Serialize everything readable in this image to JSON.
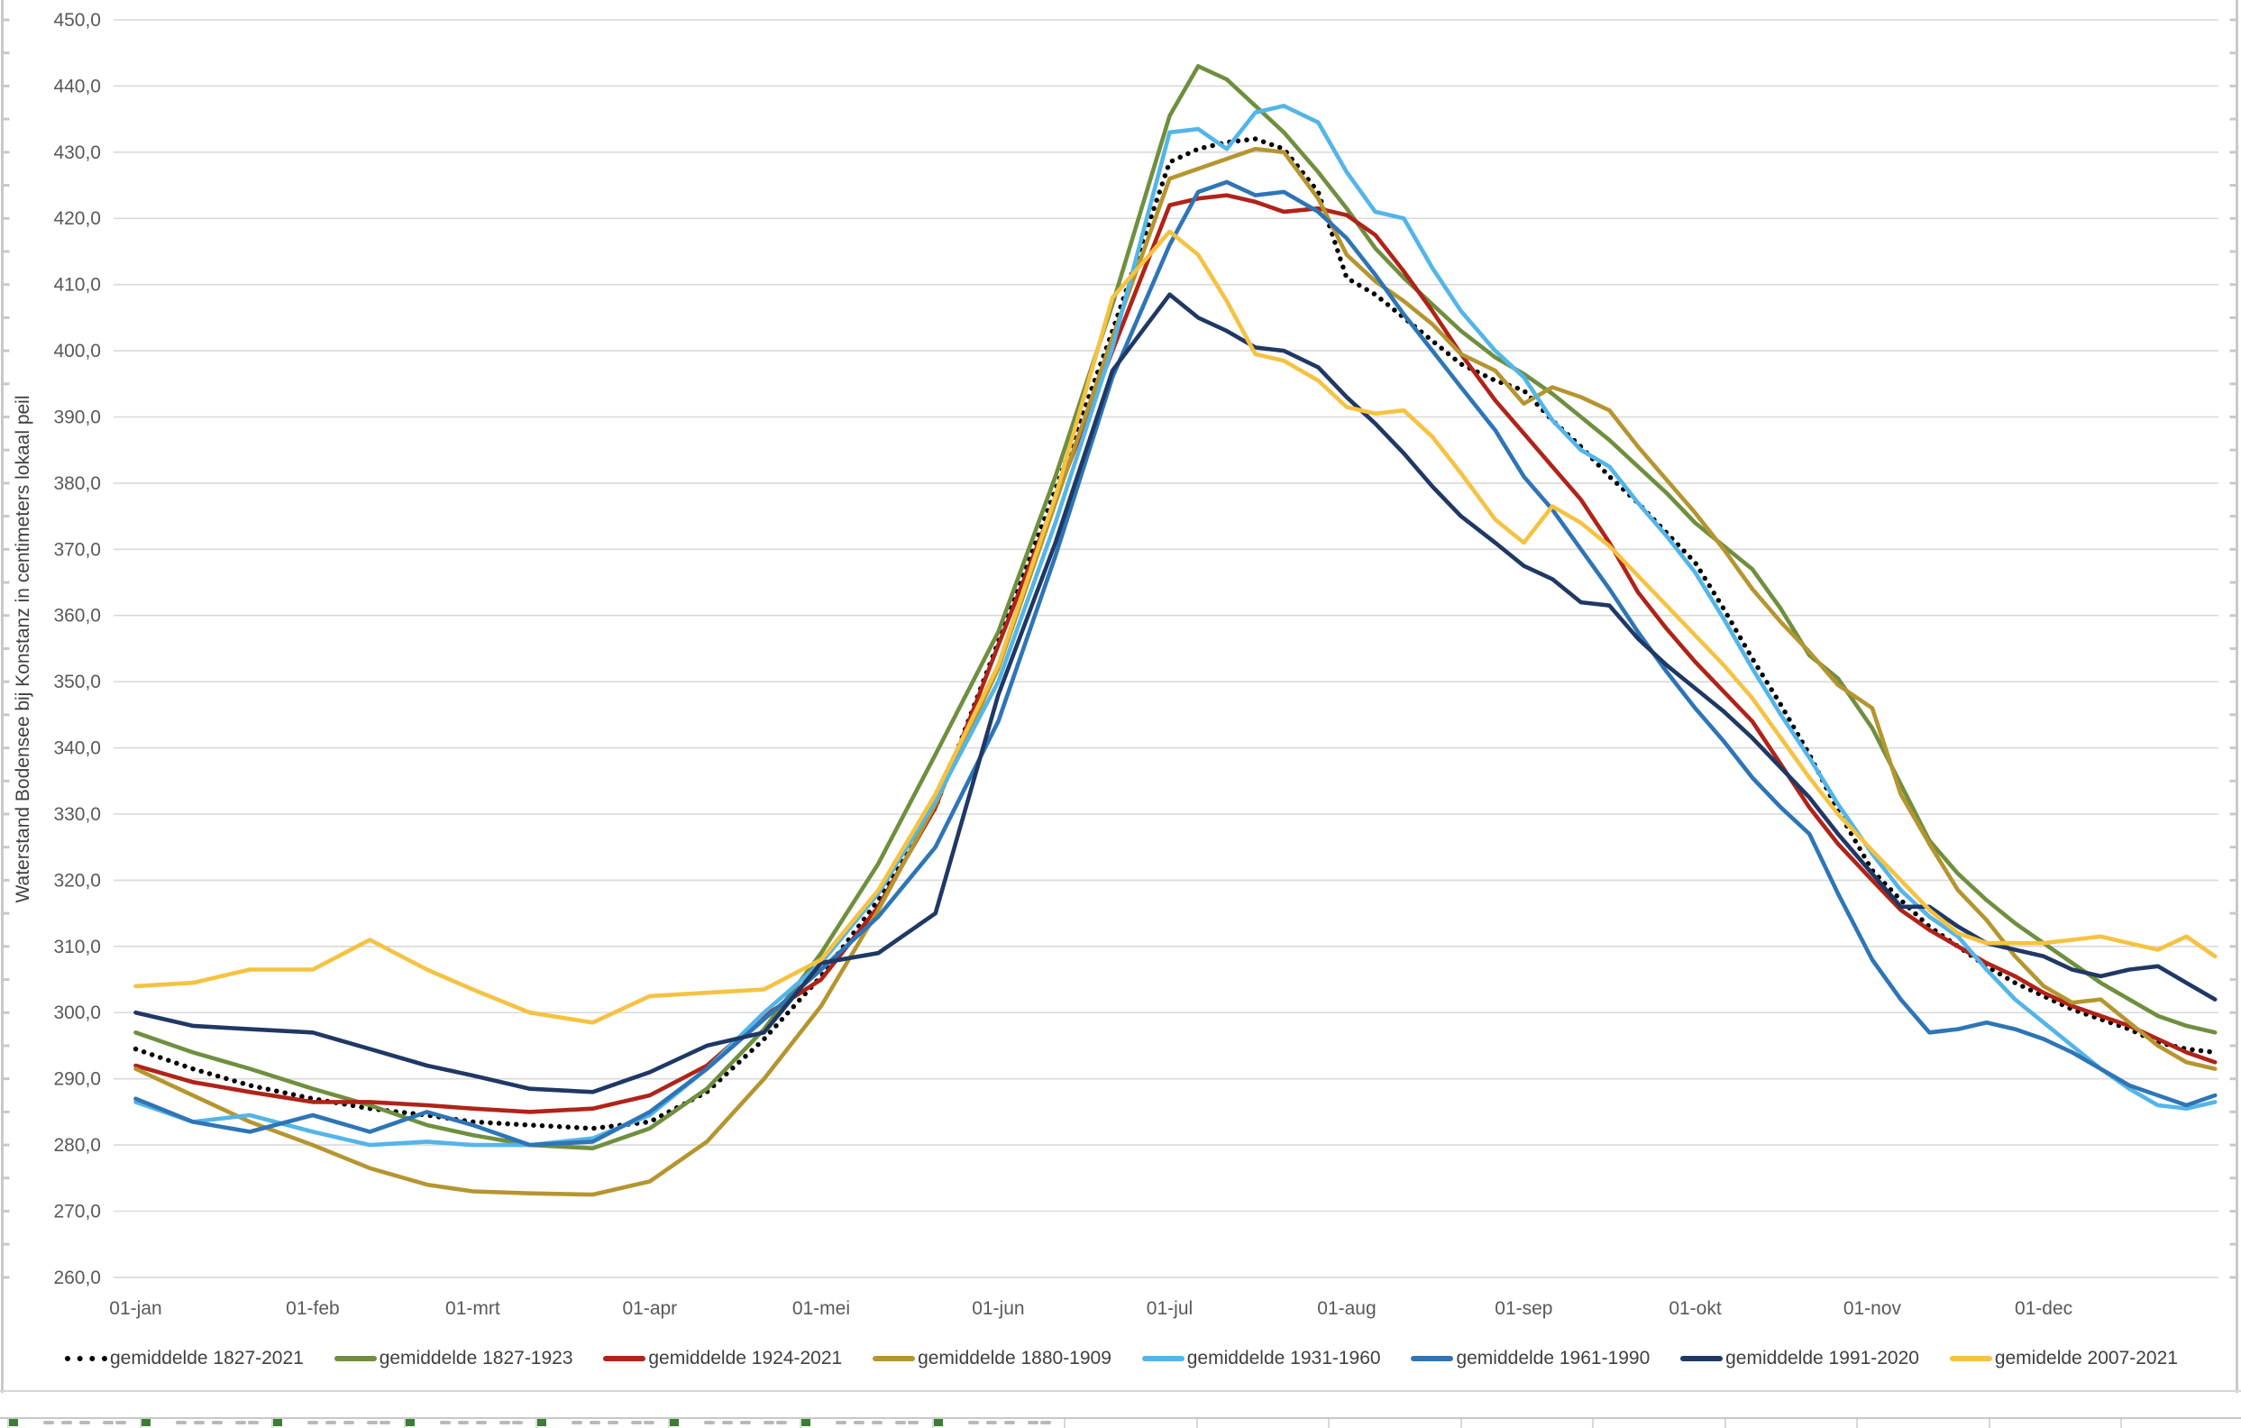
{
  "chart": {
    "y_axis": {
      "title": "Waterstand Bodensee bij Konstanz in centimeters lokaal peil",
      "min": 260,
      "max": 450,
      "step": 10,
      "tick_labels": [
        "450,0",
        "440,0",
        "430,0",
        "420,0",
        "410,0",
        "400,0",
        "390,0",
        "380,0",
        "370,0",
        "360,0",
        "350,0",
        "340,0",
        "330,0",
        "320,0",
        "310,0",
        "300,0",
        "290,0",
        "280,0",
        "270,0",
        "260,0"
      ]
    },
    "x_axis": {
      "labels": [
        "01-jan",
        "01-feb",
        "01-mrt",
        "01-apr",
        "01-mei",
        "01-jun",
        "01-jul",
        "01-aug",
        "01-sep",
        "01-okt",
        "01-nov",
        "01-dec"
      ],
      "month_start_days": [
        0,
        31,
        59,
        90,
        120,
        151,
        181,
        212,
        243,
        273,
        304,
        334
      ]
    },
    "grid_color": "#d9d9d9",
    "axis_text_color": "#595959",
    "border_color": "#c9c9c9"
  },
  "chart_data": {
    "type": "line",
    "title": "",
    "xlabel": "",
    "ylabel": "Waterstand Bodensee bij Konstanz in centimeters lokaal peil",
    "ylim": [
      260,
      450
    ],
    "grid": "horizontal",
    "legend_position": "bottom",
    "x_unit": "day_of_year",
    "days": [
      0,
      10,
      20,
      31,
      41,
      51,
      59,
      69,
      80,
      90,
      100,
      110,
      120,
      130,
      140,
      151,
      161,
      171,
      181,
      186,
      191,
      196,
      201,
      207,
      212,
      217,
      222,
      227,
      232,
      238,
      243,
      248,
      253,
      258,
      263,
      268,
      273,
      278,
      283,
      288,
      293,
      298,
      304,
      309,
      314,
      319,
      324,
      329,
      334,
      339,
      344,
      349,
      354,
      359,
      364
    ],
    "series": [
      {
        "name": "gemiddelde 1827-2021",
        "color": "#000000",
        "style": "dotted",
        "values": [
          294.5,
          291.5,
          289,
          287,
          285.5,
          284.5,
          283.5,
          283,
          282.5,
          283.5,
          288,
          296,
          305.5,
          317,
          331,
          356,
          379,
          403,
          428.5,
          430.5,
          431.5,
          432,
          430.5,
          424,
          411,
          408.5,
          405,
          401.5,
          398,
          395.5,
          394,
          389.5,
          385.5,
          381,
          377,
          372.5,
          368,
          361,
          353.5,
          346.5,
          339,
          330.5,
          321.5,
          317,
          313,
          310,
          307,
          304.5,
          302.5,
          300.5,
          299,
          297.5,
          295.5,
          294.5,
          294
        ]
      },
      {
        "name": "gemiddelde 1827-1923",
        "color": "#6F8F3F",
        "style": "solid",
        "values": [
          297,
          294,
          291.5,
          288.5,
          286,
          283,
          281.5,
          280,
          279.5,
          282.5,
          288.5,
          297.5,
          309,
          322.5,
          339,
          357.5,
          381,
          407,
          435.5,
          443,
          441,
          437,
          433,
          427,
          421.5,
          415.5,
          411,
          407,
          403,
          399,
          396.5,
          393.5,
          390,
          386.5,
          382.5,
          378.5,
          374,
          370.5,
          367,
          361,
          354,
          350.5,
          343,
          334.5,
          326,
          321,
          317,
          313.5,
          310.5,
          307.5,
          304.5,
          302,
          299.5,
          298,
          297
        ]
      },
      {
        "name": "gemiddelde 1924-2021",
        "color": "#B02318",
        "style": "solid",
        "values": [
          292,
          289.5,
          288,
          286.5,
          286.5,
          286,
          285.5,
          285,
          285.5,
          287.5,
          292,
          299.5,
          305,
          316,
          331,
          355.5,
          377.5,
          400,
          422,
          423,
          423.5,
          422.5,
          421,
          421.5,
          420.5,
          417.5,
          412,
          406,
          399.5,
          392.5,
          387.5,
          382.5,
          377.5,
          371,
          363.5,
          358,
          353,
          348.5,
          344,
          337.5,
          331,
          325.5,
          320,
          315.5,
          312.5,
          310,
          307.5,
          305.5,
          303,
          301,
          299.5,
          298,
          296,
          294,
          292.5
        ]
      },
      {
        "name": "gemiddelde 1880-1909",
        "color": "#B5952F",
        "style": "solid",
        "values": [
          291.5,
          287.5,
          283.5,
          280,
          276.5,
          274,
          273,
          272.7,
          272.5,
          274.5,
          280.5,
          290,
          301,
          315.5,
          331.5,
          352,
          377,
          402,
          426,
          427.5,
          429,
          430.5,
          430,
          423,
          414.5,
          410.5,
          407.5,
          404,
          399.5,
          397,
          392,
          394.5,
          393,
          391,
          385.5,
          380.5,
          375.5,
          370,
          364,
          359,
          354.5,
          349.5,
          346,
          333,
          325.5,
          318.5,
          314,
          308.5,
          304,
          301.5,
          302,
          298.5,
          295,
          292.5,
          291.5
        ]
      },
      {
        "name": "gemiddelde 1931-1960",
        "color": "#53B5E8",
        "style": "solid",
        "values": [
          286.5,
          283.5,
          284.5,
          282,
          280,
          280.5,
          280,
          280,
          281,
          284.5,
          291.5,
          300,
          307.5,
          318,
          332,
          350,
          374,
          400.5,
          433,
          433.5,
          430.5,
          436,
          437,
          434.5,
          427,
          421,
          420,
          412.5,
          406,
          400,
          396,
          389.5,
          385,
          382.5,
          377,
          372,
          366.5,
          359.5,
          352,
          345,
          338.5,
          331.5,
          324,
          318.5,
          314.5,
          311.5,
          306.5,
          302,
          298.5,
          295,
          291.5,
          288.5,
          286,
          285.5,
          286.5
        ]
      },
      {
        "name": "gemiddelde 1961-1990",
        "color": "#2E75B6",
        "style": "solid",
        "values": [
          287,
          283.5,
          282,
          284.5,
          282,
          285,
          283,
          280,
          280.5,
          285,
          291.5,
          299,
          306.5,
          314.5,
          325,
          344,
          369,
          396,
          416,
          424,
          425.5,
          423.5,
          424,
          421,
          417,
          411.5,
          405.5,
          400,
          394.5,
          388,
          381,
          376,
          370,
          364,
          357.5,
          351.5,
          346,
          341,
          335.5,
          331,
          327,
          318,
          308,
          302,
          297,
          297.5,
          298.5,
          297.5,
          296,
          294,
          291.5,
          289,
          287.5,
          286,
          287.5
        ]
      },
      {
        "name": "gemiddelde 1991-2020",
        "color": "#1F3864",
        "style": "solid",
        "values": [
          300,
          298,
          297.5,
          297,
          294.5,
          292,
          290.5,
          288.5,
          288,
          291,
          295,
          297,
          307.5,
          309,
          315,
          348,
          371,
          397,
          408.5,
          405,
          403,
          400.5,
          400,
          397.5,
          393,
          389,
          384.5,
          379.5,
          375,
          371,
          367.5,
          365.5,
          362,
          361.5,
          356.5,
          352.5,
          349,
          345.5,
          341.5,
          337,
          332.5,
          327,
          321,
          316,
          316,
          313,
          310.5,
          309.5,
          308.5,
          306.5,
          305.5,
          306.5,
          307,
          304.5,
          302
        ]
      },
      {
        "name": "gemidelde 2007-2021",
        "color": "#F5C242",
        "style": "solid",
        "values": [
          304,
          304.5,
          306.5,
          306.5,
          311,
          306.5,
          303.5,
          300,
          298.5,
          302.5,
          303,
          303.5,
          308,
          318.5,
          333,
          352.5,
          378,
          408,
          418,
          414.5,
          407.5,
          399.5,
          398.5,
          395.5,
          391.5,
          390.5,
          391,
          387,
          381.5,
          374.5,
          371,
          376.5,
          374,
          370.5,
          366,
          361.5,
          357,
          352.5,
          347.5,
          341.5,
          335.5,
          330,
          324.5,
          320,
          315.5,
          312,
          310.5,
          310.5,
          310.5,
          311,
          311.5,
          310.5,
          309.5,
          311.5,
          308.5
        ]
      }
    ],
    "annotations": {
      "peak_highest_series": "gemiddelde 1827-1923 ~443 rond 5 juli",
      "winter_low": "gemiddelde 1880-1909 ~272,5 in maart"
    }
  },
  "legend": {
    "items": [
      "gemiddelde 1827-2021",
      "gemiddelde 1827-1923",
      "gemiddelde 1924-2021",
      "gemiddelde 1880-1909",
      "gemiddelde 1931-1960",
      "gemiddelde 1961-1990",
      "gemiddelde 1991-2020",
      "gemidelde 2007-2021"
    ]
  }
}
